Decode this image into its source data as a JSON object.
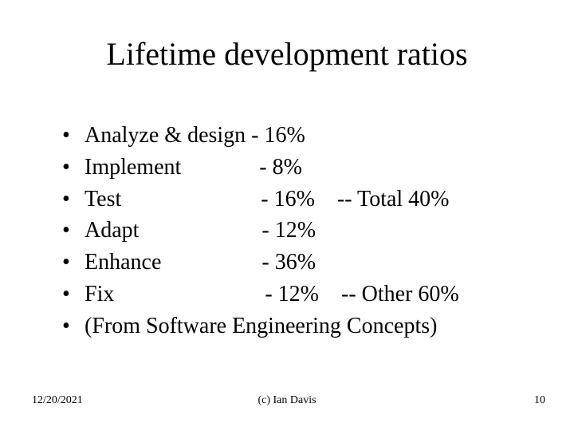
{
  "title": "Lifetime development ratios",
  "bullet_char": "•",
  "items": [
    "Analyze & design - 16%",
    "Implement              - 8%",
    "Test                         - 16%    -- Total 40%",
    "Adapt                      - 12%",
    "Enhance                  - 36%",
    "Fix                           - 12%    -- Other 60%",
    "(From Software Engineering Concepts)"
  ],
  "footer": {
    "date": "12/20/2021",
    "copyright": "(c) Ian Davis",
    "page": "10"
  },
  "colors": {
    "background": "#ffffff",
    "text": "#000000"
  },
  "typography": {
    "title_fontsize": 40,
    "body_fontsize": 28,
    "footer_fontsize": 14,
    "font_family": "Times New Roman"
  }
}
